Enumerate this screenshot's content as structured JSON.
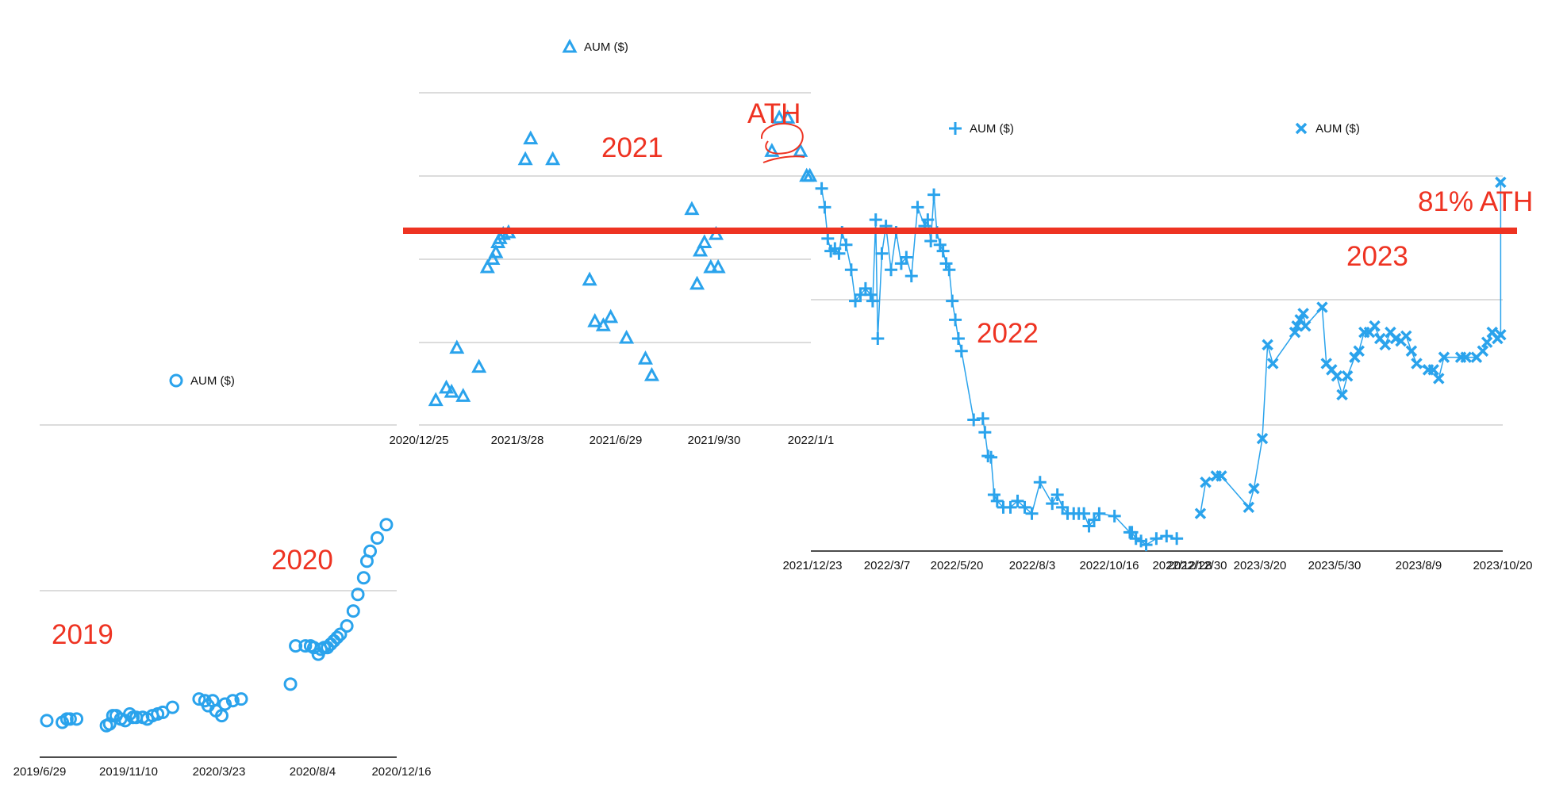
{
  "colors": {
    "series": "#2aa3ec",
    "annotation": "#ee3322",
    "grid": "#b8b8b8",
    "axis": "#111111"
  },
  "annotations": {
    "y2019": "2019",
    "y2020": "2020",
    "y2021": "2021",
    "ath": "ATH",
    "y2022": "2022",
    "y2023": "2023",
    "ath81": "81% ATH"
  },
  "chart_data": [
    {
      "type": "scatter",
      "panel": "2019-2020",
      "marker": "circle",
      "legend": "AUM ($)",
      "xlabel": "",
      "ylabel": "",
      "x_ticks": [
        "2019/6/29",
        "2019/11/10",
        "2020/3/23",
        "2020/8/4",
        "2020/12/16"
      ],
      "x_range": [
        "2019/6/29",
        "2020/12/31"
      ],
      "y_range": [
        0,
        2
      ],
      "grid": true,
      "x": [
        "2019/7/10",
        "2019/8/3",
        "2019/8/10",
        "2019/8/15",
        "2019/8/25",
        "2019/10/10",
        "2019/10/15",
        "2019/10/20",
        "2019/10/25",
        "2019/11/1",
        "2019/11/8",
        "2019/11/15",
        "2019/11/20",
        "2019/11/25",
        "2019/12/5",
        "2019/12/12",
        "2019/12/20",
        "2019/12/28",
        "2020/1/5",
        "2020/1/20",
        "2020/3/1",
        "2020/3/10",
        "2020/3/15",
        "2020/3/22",
        "2020/3/27",
        "2020/4/5",
        "2020/4/10",
        "2020/4/22",
        "2020/5/5",
        "2020/7/20",
        "2020/7/28",
        "2020/8/12",
        "2020/8/20",
        "2020/8/25",
        "2020/9/1",
        "2020/9/5",
        "2020/9/10",
        "2020/9/15",
        "2020/9/20",
        "2020/9/25",
        "2020/9/30",
        "2020/10/5",
        "2020/10/15",
        "2020/10/25",
        "2020/11/1",
        "2020/11/10",
        "2020/11/15",
        "2020/11/20",
        "2020/12/1",
        "2020/12/15"
      ],
      "values": [
        0.22,
        0.21,
        0.23,
        0.23,
        0.23,
        0.19,
        0.2,
        0.25,
        0.25,
        0.23,
        0.22,
        0.26,
        0.24,
        0.24,
        0.24,
        0.23,
        0.25,
        0.26,
        0.27,
        0.3,
        0.35,
        0.34,
        0.31,
        0.34,
        0.28,
        0.25,
        0.32,
        0.34,
        0.35,
        0.44,
        0.67,
        0.67,
        0.67,
        0.66,
        0.62,
        0.65,
        0.66,
        0.66,
        0.68,
        0.7,
        0.72,
        0.74,
        0.79,
        0.88,
        0.98,
        1.08,
        1.18,
        1.24,
        1.32,
        1.4
      ]
    },
    {
      "type": "scatter",
      "panel": "2021",
      "marker": "triangle",
      "legend": "AUM ($)",
      "xlabel": "",
      "ylabel": "",
      "x_ticks": [
        "2020/12/25",
        "2021/3/28",
        "2021/6/29",
        "2021/9/30",
        "2022/1/1"
      ],
      "x_range": [
        "2020/12/25",
        "2022/1/1"
      ],
      "y_range": [
        0,
        4
      ],
      "grid": true,
      "x": [
        "2021/1/10",
        "2021/1/20",
        "2021/1/25",
        "2021/1/30",
        "2021/2/5",
        "2021/2/20",
        "2021/2/28",
        "2021/3/5",
        "2021/3/8",
        "2021/3/10",
        "2021/3/12",
        "2021/3/15",
        "2021/3/20",
        "2021/4/5",
        "2021/4/10",
        "2021/5/1",
        "2021/6/5",
        "2021/6/10",
        "2021/6/18",
        "2021/6/25",
        "2021/7/10",
        "2021/7/28",
        "2021/8/3",
        "2021/9/10",
        "2021/9/15",
        "2021/9/18",
        "2021/9/22",
        "2021/9/28",
        "2021/10/3",
        "2021/10/5",
        "2021/11/25",
        "2021/12/2",
        "2021/12/10",
        "2021/12/22",
        "2021/12/28",
        "2021/12/31"
      ],
      "values": [
        0.3,
        0.45,
        0.4,
        0.93,
        0.35,
        0.7,
        1.9,
        2.0,
        2.08,
        2.2,
        2.25,
        2.3,
        2.32,
        3.2,
        3.45,
        3.2,
        1.75,
        1.25,
        1.2,
        1.3,
        1.05,
        0.8,
        0.6,
        2.6,
        1.7,
        2.1,
        2.2,
        1.9,
        2.3,
        1.9,
        3.3,
        3.7,
        3.7,
        3.3,
        3.0,
        3.0
      ]
    },
    {
      "type": "line",
      "panel": "2022",
      "marker": "plus",
      "legend": "AUM ($)",
      "xlabel": "",
      "ylabel": "",
      "x_ticks": [
        "2021/12/23",
        "2022/3/7",
        "2022/5/20",
        "2022/8/3",
        "2022/10/16",
        "2022/12/28"
      ],
      "x_range": [
        "2021/12/23",
        "2023/1/1"
      ],
      "y_range": [
        0,
        3
      ],
      "grid": true,
      "x": [
        "2022/1/1",
        "2022/1/4",
        "2022/1/7",
        "2022/1/10",
        "2022/1/14",
        "2022/1/18",
        "2022/1/21",
        "2022/1/25",
        "2022/1/30",
        "2022/2/3",
        "2022/2/8",
        "2022/2/13",
        "2022/2/18",
        "2022/2/20",
        "2022/2/23",
        "2022/2/25",
        "2022/3/1",
        "2022/3/5",
        "2022/3/10",
        "2022/3/15",
        "2022/3/20",
        "2022/3/25",
        "2022/3/30",
        "2022/4/5",
        "2022/4/12",
        "2022/4/15",
        "2022/4/18",
        "2022/4/21",
        "2022/4/24",
        "2022/4/27",
        "2022/4/30",
        "2022/5/3",
        "2022/5/6",
        "2022/5/9",
        "2022/5/12",
        "2022/5/15",
        "2022/5/18",
        "2022/5/30",
        "2022/6/8",
        "2022/6/10",
        "2022/6/13",
        "2022/6/16",
        "2022/6/19",
        "2022/6/22",
        "2022/6/28",
        "2022/7/5",
        "2022/7/12",
        "2022/7/19",
        "2022/7/26",
        "2022/8/3",
        "2022/8/15",
        "2022/8/20",
        "2022/8/25",
        "2022/8/30",
        "2022/9/5",
        "2022/9/10",
        "2022/9/15",
        "2022/9/20",
        "2022/9/25",
        "2022/9/30",
        "2022/10/15",
        "2022/10/30",
        "2022/11/1",
        "2022/11/5",
        "2022/11/10",
        "2022/11/15",
        "2022/11/25",
        "2022/12/5",
        "2022/12/15"
      ],
      "values": [
        2.9,
        2.75,
        2.5,
        2.4,
        2.42,
        2.38,
        2.55,
        2.45,
        2.25,
        2.0,
        2.05,
        2.1,
        2.05,
        2.0,
        2.65,
        1.7,
        2.38,
        2.6,
        2.25,
        2.55,
        2.3,
        2.35,
        2.2,
        2.75,
        2.6,
        2.65,
        2.48,
        2.85,
        2.55,
        2.45,
        2.4,
        2.3,
        2.25,
        2.0,
        1.85,
        1.7,
        1.6,
        1.05,
        1.06,
        0.95,
        0.76,
        0.75,
        0.45,
        0.4,
        0.35,
        0.35,
        0.4,
        0.35,
        0.3,
        0.55,
        0.38,
        0.45,
        0.35,
        0.3,
        0.3,
        0.3,
        0.3,
        0.2,
        0.25,
        0.3,
        0.28,
        0.15,
        0.15,
        0.1,
        0.08,
        0.05,
        0.1,
        0.12,
        0.1
      ]
    },
    {
      "type": "line",
      "panel": "2023",
      "marker": "cross",
      "legend": "AUM ($)",
      "xlabel": "",
      "ylabel": "",
      "x_ticks": [
        "2022/12/30",
        "2023/3/20",
        "2023/5/30",
        "2023/8/9",
        "2023/10/20"
      ],
      "x_range": [
        "2022/12/30",
        "2023/10/20"
      ],
      "y_range": [
        0,
        3
      ],
      "grid": true,
      "x": [
        "2023/1/5",
        "2023/1/10",
        "2023/1/20",
        "2023/1/25",
        "2023/2/20",
        "2023/2/25",
        "2023/3/5",
        "2023/3/10",
        "2023/3/15",
        "2023/4/5",
        "2023/4/7",
        "2023/4/10",
        "2023/4/13",
        "2023/4/15",
        "2023/5/1",
        "2023/5/5",
        "2023/5/10",
        "2023/5/15",
        "2023/5/20",
        "2023/5/25",
        "2023/6/1",
        "2023/6/5",
        "2023/6/10",
        "2023/6/15",
        "2023/6/20",
        "2023/6/25",
        "2023/6/30",
        "2023/7/5",
        "2023/7/10",
        "2023/7/15",
        "2023/7/20",
        "2023/7/25",
        "2023/7/30",
        "2023/8/10",
        "2023/8/15",
        "2023/8/20",
        "2023/8/25",
        "2023/9/10",
        "2023/9/15",
        "2023/9/25",
        "2023/10/1",
        "2023/10/5",
        "2023/10/10",
        "2023/10/15",
        "2023/10/18",
        "2023/10/18"
      ],
      "values": [
        0.3,
        0.55,
        0.6,
        0.6,
        0.35,
        0.5,
        0.9,
        1.65,
        1.5,
        1.75,
        1.8,
        1.85,
        1.9,
        1.8,
        1.95,
        1.5,
        1.45,
        1.4,
        1.25,
        1.4,
        1.55,
        1.6,
        1.75,
        1.75,
        1.8,
        1.7,
        1.65,
        1.75,
        1.7,
        1.68,
        1.72,
        1.6,
        1.5,
        1.45,
        1.45,
        1.38,
        1.55,
        1.55,
        1.55,
        1.55,
        1.6,
        1.67,
        1.75,
        1.7,
        1.73,
        2.95
      ]
    }
  ]
}
